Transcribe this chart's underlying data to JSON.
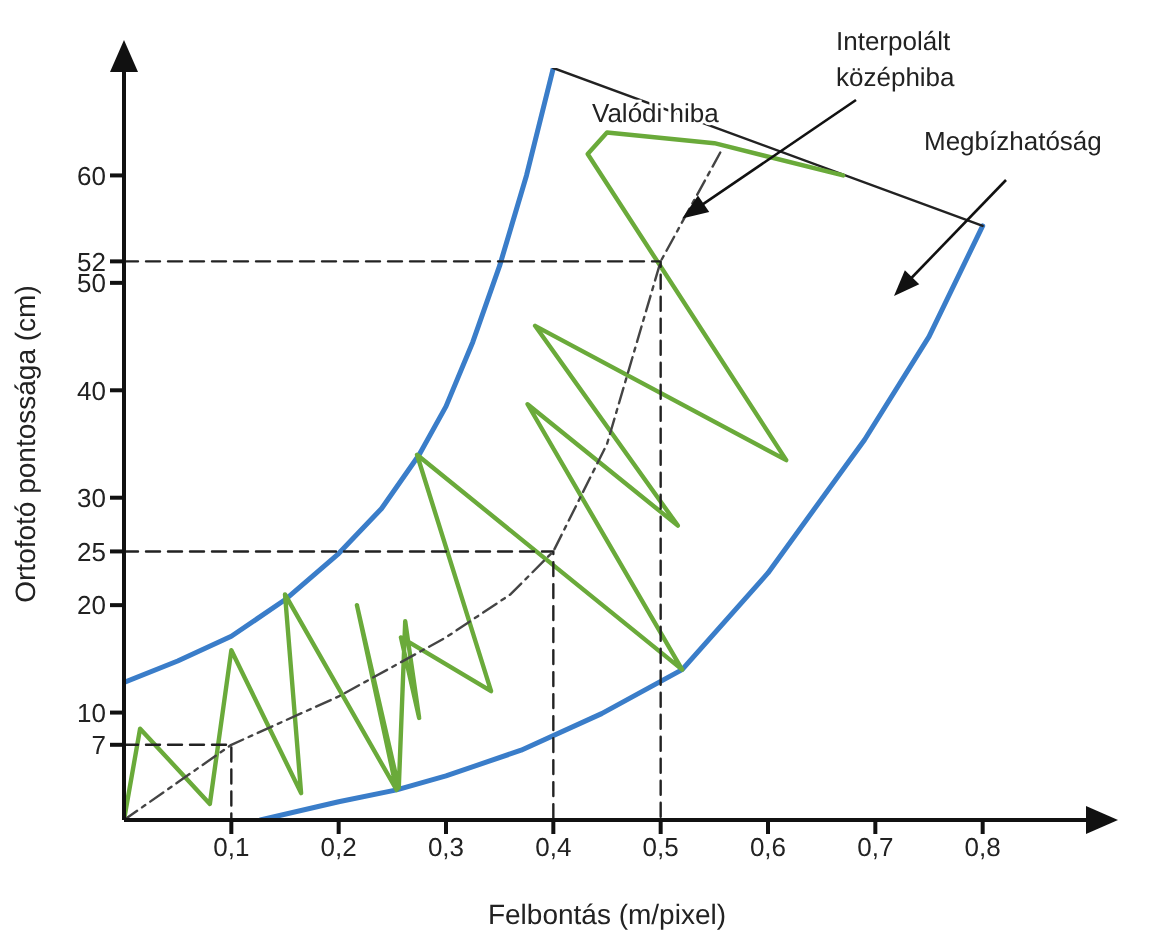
{
  "chart_data": {
    "type": "line",
    "xlabel": "Felbontás (m/pixel)",
    "ylabel": "Ortofotó pontossága (cm)",
    "xlim": [
      0,
      0.9
    ],
    "ylim": [
      0,
      70
    ],
    "xticks": [
      {
        "value": 0.1,
        "label": "0,1"
      },
      {
        "value": 0.2,
        "label": "0,2"
      },
      {
        "value": 0.3,
        "label": "0,3"
      },
      {
        "value": 0.4,
        "label": "0,4"
      },
      {
        "value": 0.5,
        "label": "0,5"
      },
      {
        "value": 0.6,
        "label": "0,6"
      },
      {
        "value": 0.7,
        "label": "0,7"
      },
      {
        "value": 0.8,
        "label": "0,8"
      }
    ],
    "yticks": [
      7,
      10,
      20,
      25,
      30,
      40,
      50,
      52,
      60
    ],
    "marker": "none",
    "series": [
      {
        "color": "#3a7dc9",
        "line_style": "solid",
        "x": [
          0,
          0.05,
          0.1,
          0.15,
          0.2,
          0.24,
          0.275,
          0.3,
          0.325,
          0.35,
          0.375,
          0.4
        ],
        "values": [
          12.8,
          14.8,
          17.1,
          20.5,
          24.8,
          29,
          34,
          38.5,
          44.5,
          51.6,
          60,
          70
        ]
      },
      {
        "color": "#3a7dc9",
        "line_style": "solid",
        "x": [
          0.127,
          0.2,
          0.254,
          0.3,
          0.37,
          0.445,
          0.52,
          0.6,
          0.69,
          0.75,
          0.8
        ],
        "values": [
          0,
          1.7,
          2.8,
          4.1,
          6.5,
          9.9,
          14,
          23,
          35.4,
          45,
          55.3
        ]
      },
      {
        "color": "#222222",
        "line_style": "solid",
        "x": [
          0.4,
          0.8
        ],
        "values": [
          70,
          55.3
        ]
      },
      {
        "color": "#6aaa3a",
        "line_style": "solid",
        "x": [
          0,
          0.015,
          0.08,
          0.1,
          0.165,
          0.15,
          0.254,
          0.217,
          0.256,
          0.262,
          0.275,
          0.258,
          0.342,
          0.273,
          0.52,
          0.376,
          0.516,
          0.383,
          0.617,
          0.432,
          0.45,
          0.55,
          0.67
        ],
        "values": [
          0,
          8.5,
          1.5,
          15.8,
          2.5,
          21,
          2.8,
          20,
          3,
          18.5,
          9.5,
          17,
          12,
          34,
          14,
          38.7,
          27.4,
          46,
          33.5,
          62,
          64,
          63,
          60
        ]
      },
      {
        "color": "#444444",
        "line_style": "dashdot",
        "x": [
          0,
          0.1,
          0.2,
          0.3,
          0.36,
          0.4,
          0.45,
          0.5,
          0.557
        ],
        "values": [
          0,
          7,
          11.5,
          17,
          21,
          25,
          35,
          52,
          62.4
        ]
      },
      {
        "color": "#222222",
        "line_style": "dashed",
        "x": [
          0,
          0.1,
          0.1
        ],
        "values": [
          7,
          7,
          0
        ]
      },
      {
        "color": "#222222",
        "line_style": "dashed",
        "x": [
          0,
          0.4,
          0.4
        ],
        "values": [
          25,
          25,
          0
        ]
      },
      {
        "color": "#222222",
        "line_style": "dashed",
        "x": [
          0,
          0.5,
          0.5
        ],
        "values": [
          52,
          52,
          0
        ]
      }
    ],
    "annotations": [
      "Valódi hiba",
      {
        "text": "Interpolált\nközéphiba",
        "x": 0.52,
        "y": 56
      },
      "Megbízhatóság"
    ]
  }
}
